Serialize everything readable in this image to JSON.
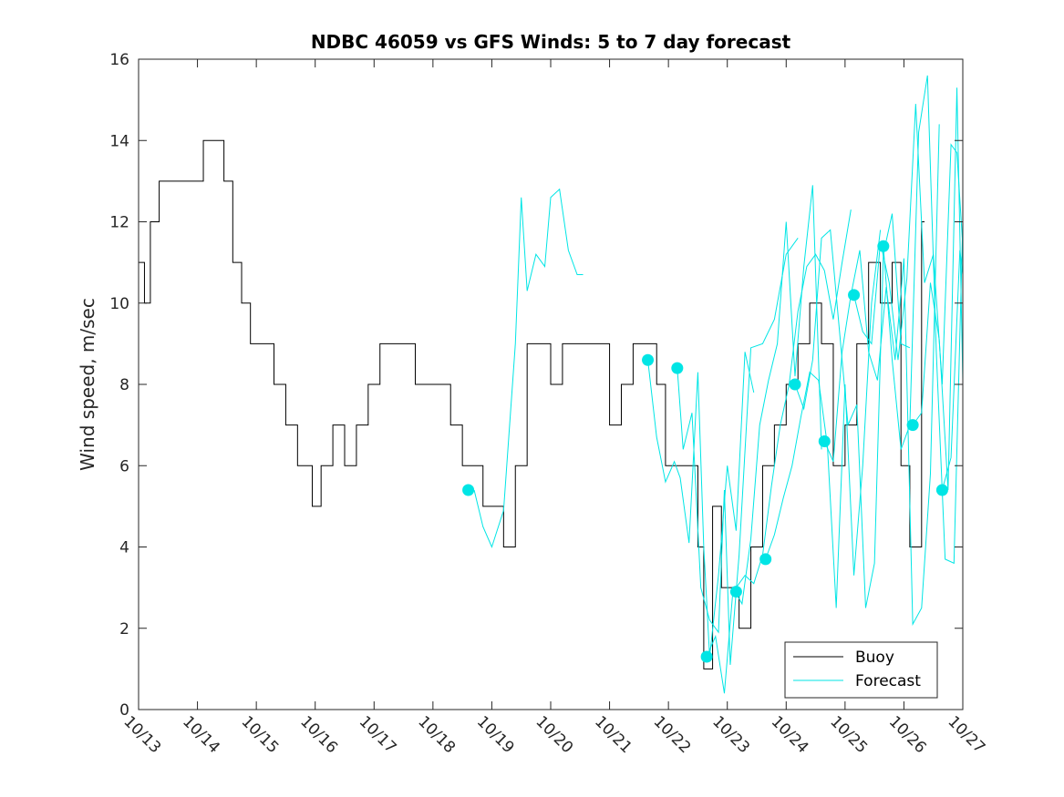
{
  "chart_data": {
    "type": "line",
    "title": "NDBC 46059 vs GFS Winds: 5 to 7 day forecast",
    "xlabel": "",
    "ylabel": "Wind speed, m/sec",
    "xlim": [
      "10/13",
      "10/27"
    ],
    "ylim": [
      0,
      16
    ],
    "x_ticks": [
      "10/13",
      "10/14",
      "10/15",
      "10/16",
      "10/17",
      "10/18",
      "10/19",
      "10/20",
      "10/21",
      "10/22",
      "10/23",
      "10/24",
      "10/25",
      "10/26",
      "10/27"
    ],
    "y_ticks": [
      0,
      2,
      4,
      6,
      8,
      10,
      12,
      14,
      16
    ],
    "grid": false,
    "legend": {
      "location": "bottom-right",
      "entries": [
        "Buoy",
        "Forecast"
      ]
    },
    "colors": {
      "buoy": "#000000",
      "forecast": "#00e5e5",
      "markers": "#00e5e5",
      "axes": "#262626"
    },
    "series": [
      {
        "name": "Buoy",
        "x": [
          13.0,
          13.1,
          13.2,
          13.35,
          13.5,
          13.7,
          13.9,
          14.1,
          14.3,
          14.45,
          14.6,
          14.75,
          14.9,
          15.1,
          15.3,
          15.5,
          15.7,
          15.85,
          15.95,
          16.1,
          16.3,
          16.5,
          16.7,
          16.9,
          17.1,
          17.3,
          17.5,
          17.7,
          17.9,
          18.1,
          18.3,
          18.5,
          18.7,
          18.85,
          19.0,
          19.2,
          19.4,
          19.6,
          19.8,
          20.0,
          20.2,
          20.4,
          20.6,
          20.8,
          21.0,
          21.2,
          21.4,
          21.6,
          21.8,
          21.95,
          22.1,
          22.3,
          22.5,
          22.6,
          22.75,
          22.9,
          23.05,
          23.2,
          23.4,
          23.6,
          23.8,
          24.0,
          24.2,
          24.4,
          24.6,
          24.8,
          25.0,
          25.2,
          25.4,
          25.6,
          25.8,
          25.95,
          26.1,
          26.3
        ],
        "y": [
          11,
          10,
          12,
          13,
          13,
          13,
          13,
          14,
          14,
          13,
          11,
          10,
          9,
          9,
          8,
          7,
          6,
          6,
          5,
          6,
          7,
          6,
          7,
          8,
          9,
          9,
          9,
          8,
          8,
          8,
          7,
          6,
          6,
          5,
          5,
          4,
          6,
          9,
          9,
          8,
          9,
          9,
          9,
          9,
          7,
          8,
          9,
          9,
          8,
          6,
          6,
          6,
          4,
          1,
          5,
          3,
          3,
          2,
          4,
          6,
          7,
          8,
          9,
          10,
          9,
          6,
          7,
          9,
          11,
          10,
          11,
          6,
          4,
          12
        ]
      },
      {
        "name": "Forecast",
        "lines": [
          {
            "x": [
              18.7,
              18.85,
              19.0,
              19.2,
              19.4,
              19.5,
              19.6,
              19.75,
              19.9,
              20.0,
              20.15,
              20.3,
              20.45,
              20.55
            ],
            "y": [
              5.4,
              4.5,
              4.0,
              4.9,
              9.0,
              12.6,
              10.3,
              11.2,
              10.9,
              12.6,
              12.8,
              11.3,
              10.7,
              10.7
            ]
          },
          {
            "x": [
              21.65,
              21.8,
              21.95,
              22.1,
              22.2,
              22.35,
              22.5,
              22.6,
              22.7,
              22.85,
              23.0,
              23.15,
              23.3,
              23.45
            ],
            "y": [
              8.6,
              6.7,
              5.6,
              6.1,
              5.7,
              4.1,
              8.3,
              4.0,
              1.3,
              3.3,
              6.0,
              4.4,
              8.8,
              7.8
            ]
          },
          {
            "x": [
              22.15,
              22.25,
              22.4,
              22.55,
              22.7,
              22.85,
              22.95,
              23.05,
              23.2,
              23.4,
              23.6,
              23.8,
              24.0,
              24.2
            ],
            "y": [
              8.4,
              6.4,
              7.3,
              3.0,
              2.2,
              1.9,
              5.4,
              1.1,
              3.8,
              8.9,
              9.0,
              9.6,
              11.2,
              11.6
            ]
          },
          {
            "x": [
              22.65,
              22.8,
              22.95,
              23.1,
              23.25,
              23.4,
              23.55,
              23.7,
              23.85,
              24.0,
              24.15,
              24.3,
              24.45,
              24.6
            ],
            "y": [
              1.3,
              1.8,
              0.4,
              3.0,
              2.6,
              4.2,
              7.0,
              8.1,
              9.0,
              12.0,
              8.2,
              10.9,
              12.9,
              6.4
            ]
          },
          {
            "x": [
              23.15,
              23.3,
              23.45,
              23.6,
              23.75,
              23.9,
              24.05,
              24.2,
              24.35,
              24.5,
              24.65,
              24.8,
              24.95,
              25.1
            ],
            "y": [
              3.0,
              3.3,
              3.1,
              3.8,
              5.5,
              7.0,
              8.0,
              9.8,
              10.9,
              11.2,
              10.8,
              9.6,
              11.0,
              12.3
            ]
          },
          {
            "x": [
              23.65,
              23.8,
              23.95,
              24.1,
              24.25,
              24.4,
              24.55,
              24.7,
              24.85,
              25.0,
              25.15,
              25.3,
              25.45,
              25.6
            ],
            "y": [
              3.7,
              4.3,
              5.2,
              6.0,
              7.2,
              8.3,
              8.1,
              6.5,
              2.5,
              8.0,
              3.3,
              6.0,
              10.0,
              11.8
            ]
          },
          {
            "x": [
              24.15,
              24.3,
              24.45,
              24.6,
              24.75,
              24.9,
              25.05,
              25.2,
              25.35,
              25.5,
              25.65,
              25.8,
              25.95,
              26.1
            ],
            "y": [
              8.0,
              7.4,
              8.6,
              11.6,
              11.8,
              9.4,
              7.0,
              7.5,
              2.5,
              3.6,
              11.2,
              12.2,
              9.0,
              8.9
            ]
          },
          {
            "x": [
              24.65,
              24.8,
              24.95,
              25.1,
              25.25,
              25.4,
              25.55,
              25.7,
              25.85,
              26.0,
              26.15,
              26.3,
              26.45,
              26.6
            ],
            "y": [
              6.6,
              6.1,
              8.8,
              10.2,
              11.3,
              8.8,
              8.1,
              10.4,
              8.6,
              11.1,
              2.1,
              2.5,
              5.8,
              14.4
            ]
          },
          {
            "x": [
              25.15,
              25.3,
              25.45,
              25.6,
              25.75,
              25.9,
              26.05,
              26.2,
              26.35,
              26.5,
              26.65,
              26.8,
              26.9,
              27.0
            ],
            "y": [
              10.2,
              9.3,
              9.0,
              11.5,
              10.5,
              8.6,
              10.6,
              14.9,
              10.5,
              11.2,
              8.0,
              13.9,
              13.7,
              11.4
            ]
          },
          {
            "x": [
              25.65,
              25.8,
              25.95,
              26.1,
              26.25,
              26.4,
              26.55,
              26.7,
              26.85,
              27.0
            ],
            "y": [
              11.4,
              8.6,
              6.4,
              7.0,
              14.2,
              15.6,
              8.8,
              3.7,
              3.6,
              12.0
            ]
          },
          {
            "x": [
              26.15,
              26.3,
              26.45,
              26.6,
              26.75,
              26.9,
              27.0
            ],
            "y": [
              7.0,
              7.3,
              10.5,
              9.1,
              5.4,
              15.3,
              8.1
            ]
          },
          {
            "x": [
              26.65,
              26.8,
              26.95,
              27.0
            ],
            "y": [
              5.4,
              6.2,
              11.3,
              10.7
            ]
          }
        ]
      }
    ],
    "markers": {
      "x": [
        18.6,
        21.65,
        22.15,
        22.65,
        23.15,
        23.65,
        24.15,
        24.65,
        25.15,
        25.65,
        26.15,
        26.65
      ],
      "y": [
        5.4,
        8.6,
        8.4,
        1.3,
        2.9,
        3.7,
        8.0,
        6.6,
        10.2,
        11.4,
        7.0,
        5.4
      ]
    }
  }
}
